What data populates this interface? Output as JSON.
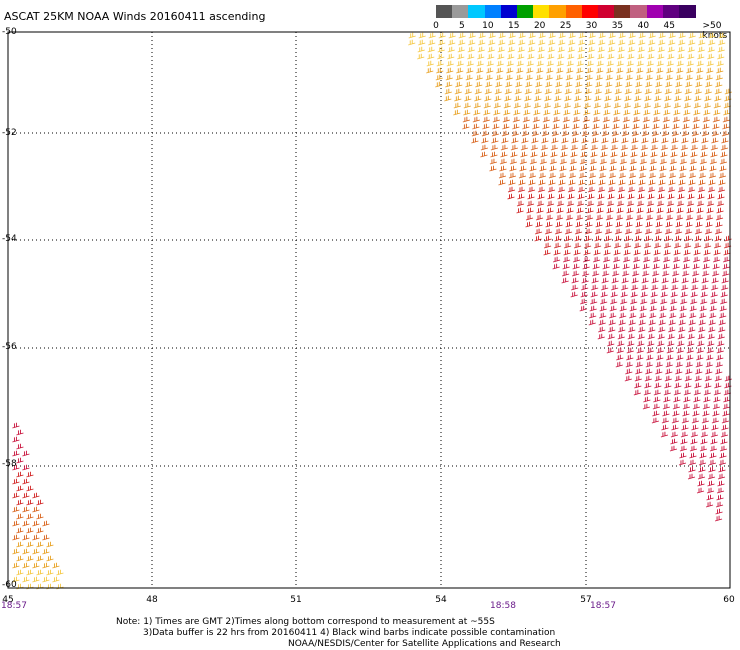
{
  "title": "ASCAT 25KM NOAA Winds 20160411 ascending",
  "legend": {
    "unit_label": ">50 knots",
    "labels": [
      "0",
      "5",
      "10",
      "15",
      "20",
      "25",
      "30",
      "35",
      "40",
      "45"
    ],
    "colors": [
      "#555555",
      "#9a9a9a",
      "#00c8ff",
      "#0080ff",
      "#0000d0",
      "#00a000",
      "#ffe000",
      "#ffa000",
      "#ff6000",
      "#ff0000",
      "#d00030",
      "#7a3020",
      "#c06080",
      "#a000b0",
      "#600080",
      "#3a0060"
    ]
  },
  "axes": {
    "lat_labels": [
      "-50",
      "-52",
      "-54",
      "-56",
      "-58",
      "-60"
    ],
    "lon_labels": [
      "45",
      "48",
      "51",
      "54",
      "57",
      "60"
    ]
  },
  "times": [
    "18:57",
    "18:58",
    "18:57"
  ],
  "notes": {
    "line1": "Note: 1) Times are GMT 2)Times along bottom correspond to measurement at ~55S",
    "line2": "3)Data buffer is 22 hrs from 20160411 4) Black wind barbs indicate possible contamination",
    "line3": "NOAA/NESDIS/Center for Satellite Applications and Research"
  },
  "swath_colors": {
    "light": "#f5c842",
    "mid": "#e8a020",
    "orange": "#d86018",
    "red": "#d02020",
    "crimson": "#c8103a"
  }
}
